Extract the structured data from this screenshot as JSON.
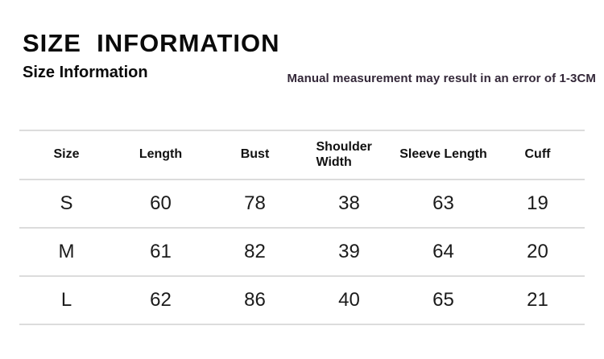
{
  "page": {
    "title": "SIZE  INFORMATION",
    "subtitle": "Size Information",
    "note": "Manual measurement may result in an error of 1-3CM"
  },
  "colors": {
    "title_text": "#0a0a0a",
    "note_text": "#342839",
    "divider": "#dcdcdc",
    "background": "#ffffff"
  },
  "size_table": {
    "headers": [
      "Size",
      "Length",
      "Bust",
      "Shoulder Width",
      "Sleeve Length",
      "Cuff"
    ],
    "rows": [
      [
        "S",
        "60",
        "78",
        "38",
        "63",
        "19"
      ],
      [
        "M",
        "61",
        "82",
        "39",
        "64",
        "20"
      ],
      [
        "L",
        "62",
        "86",
        "40",
        "65",
        "21"
      ]
    ]
  }
}
